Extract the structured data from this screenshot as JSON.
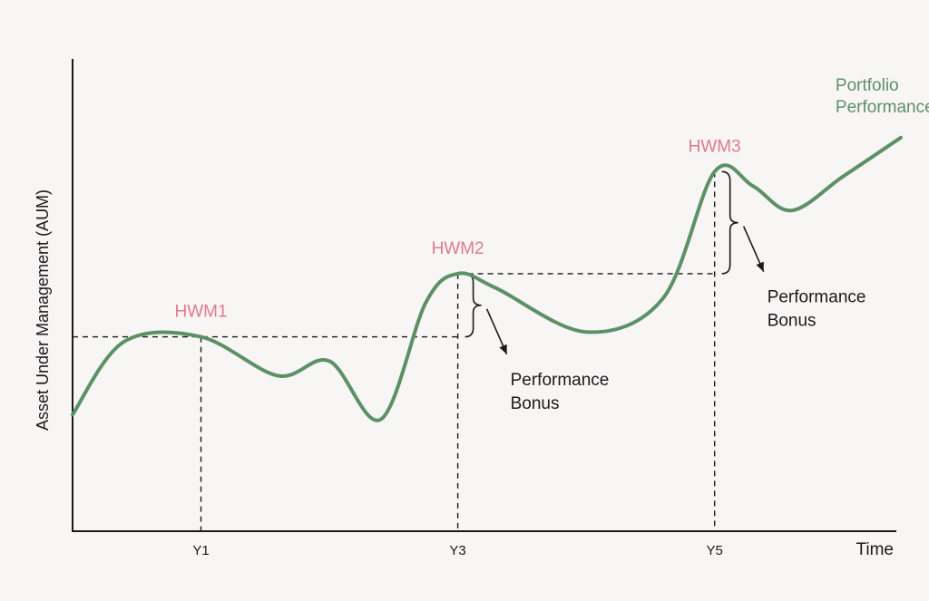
{
  "colors": {
    "background": "#f8f5f5",
    "series": "#5c9166",
    "hwm_label": "#e07a8c",
    "text": "#1a1a1a"
  },
  "chart_data": {
    "type": "line",
    "title": "",
    "xlabel": "Time",
    "ylabel": "Asset Under Management (AUM)",
    "xlim": [
      0,
      6.5
    ],
    "ylim": [
      0,
      10
    ],
    "x_ticks": [
      {
        "x": 1,
        "label": "Y1"
      },
      {
        "x": 3,
        "label": "Y3"
      },
      {
        "x": 5,
        "label": "Y5"
      }
    ],
    "grid": false,
    "series": [
      {
        "name": "Portfolio Performance",
        "color": "#5c9166",
        "points": [
          [
            0,
            2.4
          ],
          [
            0.4,
            3.9
          ],
          [
            1.0,
            4.0
          ],
          [
            1.6,
            3.2
          ],
          [
            2.0,
            3.5
          ],
          [
            2.4,
            2.3
          ],
          [
            2.75,
            4.7
          ],
          [
            3.0,
            5.3
          ],
          [
            3.3,
            5.0
          ],
          [
            4.0,
            4.1
          ],
          [
            4.6,
            4.8
          ],
          [
            5.0,
            7.4
          ],
          [
            5.3,
            7.1
          ],
          [
            5.6,
            6.6
          ],
          [
            6.0,
            7.3
          ],
          [
            6.45,
            8.1
          ]
        ]
      }
    ],
    "high_water_marks": [
      {
        "label": "HWM1",
        "x": 1.0,
        "y": 4.0
      },
      {
        "label": "HWM2",
        "x": 3.0,
        "y": 5.3
      },
      {
        "label": "HWM3",
        "x": 5.0,
        "y": 7.4
      }
    ],
    "annotations": [
      {
        "lines": [
          "Performance",
          "Bonus"
        ],
        "from_mark": "HWM1",
        "to_mark": "HWM2"
      },
      {
        "lines": [
          "Performance",
          "Bonus"
        ],
        "from_mark": "HWM2",
        "to_mark": "HWM3"
      }
    ]
  }
}
